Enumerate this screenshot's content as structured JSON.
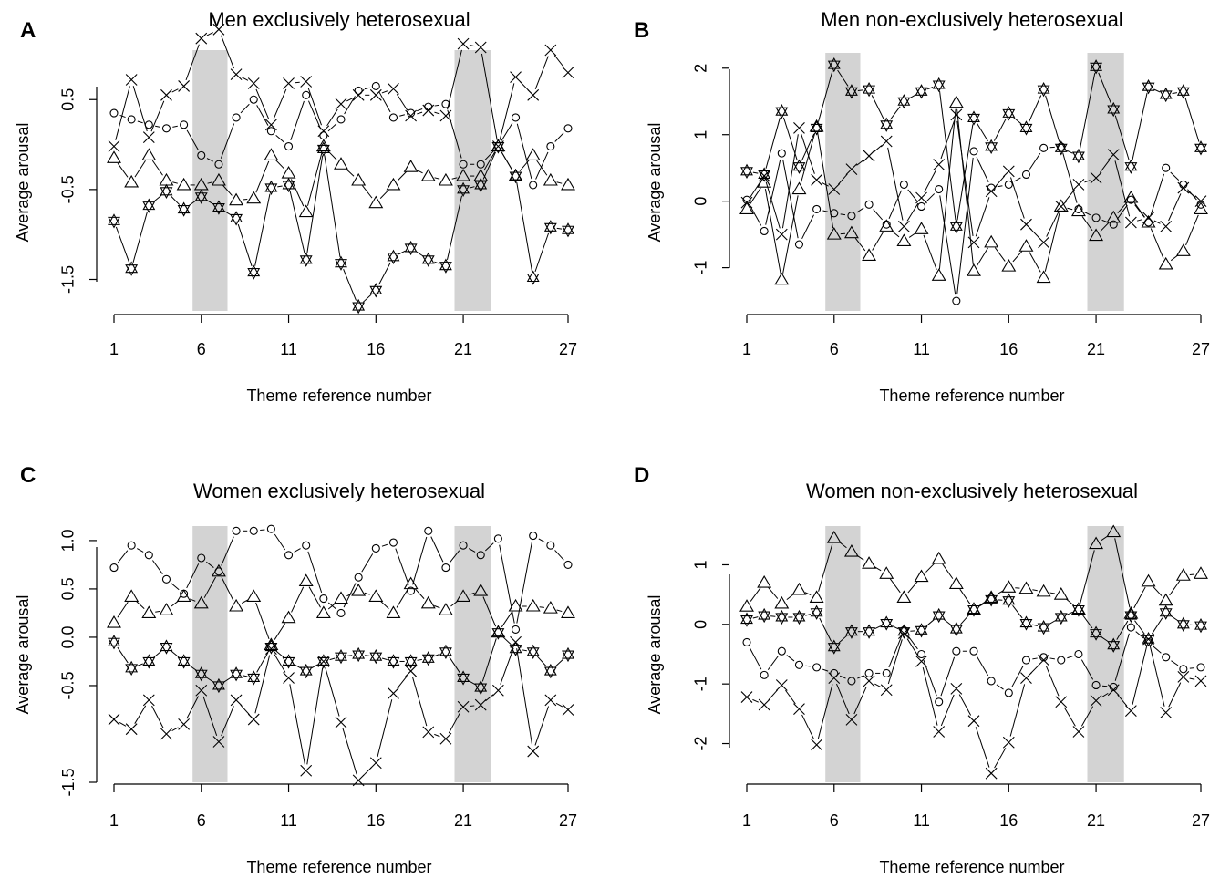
{
  "figure": {
    "colors": {
      "ink": "#000000",
      "shade": "#d3d3d3",
      "background": "#ffffff"
    }
  },
  "chart_data": [
    {
      "type": "line",
      "panel_letter": "A",
      "title": "Men exclusively heterosexual",
      "xlabel": "Theme reference number",
      "ylabel": "Average arousal",
      "xlim": [
        1,
        27
      ],
      "ylim": [
        -1.85,
        1.05
      ],
      "x_ticks": [
        1,
        6,
        11,
        16,
        21,
        27
      ],
      "x_tick_labels": [
        "1",
        "6",
        "11",
        "16",
        "21",
        "27"
      ],
      "y_ticks": [
        0.5,
        -0.5,
        -1.5
      ],
      "y_tick_labels": [
        "0.5",
        "-0.5",
        "-1.5"
      ],
      "shaded_x_ranges": [
        [
          5.5,
          7.5
        ],
        [
          20.5,
          22.6
        ]
      ],
      "grid": false,
      "legend": "none",
      "x": [
        1,
        2,
        3,
        4,
        5,
        6,
        7,
        8,
        9,
        10,
        11,
        12,
        13,
        14,
        15,
        16,
        17,
        18,
        19,
        20,
        21,
        22,
        23,
        24,
        25,
        26,
        27
      ],
      "series": [
        {
          "marker": "circle",
          "values": [
            0.35,
            0.28,
            0.22,
            0.18,
            0.22,
            -0.12,
            -0.22,
            0.3,
            0.5,
            0.15,
            -0.02,
            0.55,
            0.1,
            0.28,
            0.6,
            0.65,
            0.3,
            0.35,
            0.42,
            0.45,
            -0.22,
            -0.22,
            -0.02,
            0.3,
            -0.45,
            -0.02,
            0.18
          ]
        },
        {
          "marker": "cross",
          "values": [
            -0.02,
            0.72,
            0.08,
            0.55,
            0.65,
            1.18,
            1.28,
            0.78,
            0.68,
            0.22,
            0.68,
            0.7,
            0.15,
            0.45,
            0.55,
            0.55,
            0.62,
            0.32,
            0.38,
            0.32,
            1.12,
            1.08,
            -0.02,
            0.75,
            0.55,
            1.05,
            0.8
          ]
        },
        {
          "marker": "triangle",
          "values": [
            -0.15,
            -0.42,
            -0.12,
            -0.4,
            -0.45,
            -0.45,
            -0.4,
            -0.62,
            -0.6,
            -0.12,
            -0.32,
            -0.75,
            -0.02,
            -0.22,
            -0.4,
            -0.65,
            -0.45,
            -0.25,
            -0.35,
            -0.4,
            -0.35,
            -0.35,
            -0.02,
            -0.35,
            -0.12,
            -0.4,
            -0.45
          ]
        },
        {
          "marker": "star",
          "values": [
            -0.85,
            -1.38,
            -0.68,
            -0.52,
            -0.72,
            -0.58,
            -0.7,
            -0.82,
            -1.42,
            -0.48,
            -0.45,
            -1.28,
            -0.05,
            -1.32,
            -1.8,
            -1.62,
            -1.25,
            -1.15,
            -1.28,
            -1.35,
            -0.5,
            -0.45,
            -0.02,
            -0.35,
            -1.48,
            -0.92,
            -0.95
          ]
        }
      ]
    },
    {
      "type": "line",
      "panel_letter": "B",
      "title": "Men non-exclusively heterosexual",
      "xlabel": "Theme reference number",
      "ylabel": "Average arousal",
      "xlim": [
        1,
        27
      ],
      "ylim": [
        -1.65,
        2.23
      ],
      "x_ticks": [
        1,
        6,
        11,
        16,
        21,
        27
      ],
      "x_tick_labels": [
        "1",
        "6",
        "11",
        "16",
        "21",
        "27"
      ],
      "y_ticks": [
        2,
        1,
        0,
        -1
      ],
      "y_tick_labels": [
        "2",
        "1",
        "0",
        "-1"
      ],
      "shaded_x_ranges": [
        [
          5.5,
          7.5
        ],
        [
          20.5,
          22.6
        ]
      ],
      "grid": false,
      "legend": "none",
      "x": [
        1,
        2,
        3,
        4,
        5,
        6,
        7,
        8,
        9,
        10,
        11,
        12,
        13,
        14,
        15,
        16,
        17,
        18,
        19,
        20,
        21,
        22,
        23,
        24,
        25,
        26,
        27
      ],
      "series": [
        {
          "marker": "circle",
          "values": [
            0.02,
            -0.45,
            0.72,
            -0.65,
            -0.12,
            -0.18,
            -0.22,
            -0.05,
            -0.35,
            0.25,
            -0.08,
            0.18,
            -1.5,
            0.75,
            0.2,
            0.25,
            0.4,
            0.8,
            0.82,
            -0.12,
            -0.25,
            -0.35,
            0.02,
            -0.32,
            0.5,
            0.25,
            -0.05
          ]
        },
        {
          "marker": "cross",
          "values": [
            -0.02,
            0.38,
            -0.5,
            1.1,
            0.32,
            0.18,
            0.48,
            0.68,
            0.9,
            -0.38,
            0.05,
            0.55,
            1.3,
            -0.62,
            0.15,
            0.45,
            -0.35,
            -0.62,
            -0.08,
            0.25,
            0.35,
            0.7,
            -0.32,
            -0.25,
            -0.38,
            0.2,
            0.0
          ]
        },
        {
          "marker": "triangle",
          "values": [
            -0.12,
            0.28,
            -1.18,
            0.18,
            1.12,
            -0.5,
            -0.48,
            -0.82,
            -0.38,
            -0.6,
            -0.42,
            -1.12,
            1.48,
            -1.05,
            -0.62,
            -0.98,
            -0.68,
            -1.15,
            -0.08,
            -0.15,
            -0.52,
            -0.25,
            0.05,
            -0.32,
            -0.95,
            -0.75,
            -0.12
          ]
        },
        {
          "marker": "star",
          "values": [
            0.45,
            0.4,
            1.35,
            0.52,
            1.1,
            2.05,
            1.65,
            1.68,
            1.15,
            1.5,
            1.65,
            1.75,
            -0.38,
            1.25,
            0.82,
            1.32,
            1.1,
            1.68,
            0.8,
            0.68,
            2.02,
            1.38,
            0.52,
            1.72,
            1.6,
            1.65,
            0.8
          ]
        }
      ]
    },
    {
      "type": "line",
      "panel_letter": "C",
      "title": "Women exclusively heterosexual",
      "xlabel": "Theme reference number",
      "ylabel": "Average arousal",
      "xlim": [
        1,
        27
      ],
      "ylim": [
        -1.5,
        1.15
      ],
      "x_ticks": [
        1,
        6,
        11,
        16,
        21,
        27
      ],
      "x_tick_labels": [
        "1",
        "6",
        "11",
        "16",
        "21",
        "27"
      ],
      "y_ticks": [
        1.0,
        0.5,
        0.0,
        -0.5,
        -1.5
      ],
      "y_tick_labels": [
        "1.0",
        "0.5",
        "0.0",
        "-0.5",
        "-1.5"
      ],
      "shaded_x_ranges": [
        [
          5.5,
          7.5
        ],
        [
          20.5,
          22.6
        ]
      ],
      "grid": false,
      "legend": "none",
      "x": [
        1,
        2,
        3,
        4,
        5,
        6,
        7,
        8,
        9,
        10,
        11,
        12,
        13,
        14,
        15,
        16,
        17,
        18,
        19,
        20,
        21,
        22,
        23,
        24,
        25,
        26,
        27
      ],
      "series": [
        {
          "marker": "circle",
          "values": [
            0.72,
            0.95,
            0.85,
            0.6,
            0.45,
            0.82,
            0.68,
            1.1,
            1.1,
            1.12,
            0.85,
            0.95,
            0.4,
            0.25,
            0.62,
            0.92,
            0.98,
            0.48,
            1.1,
            0.72,
            0.95,
            0.85,
            1.02,
            0.08,
            1.05,
            0.95,
            0.75
          ]
        },
        {
          "marker": "cross",
          "values": [
            -0.85,
            -0.95,
            -0.65,
            -1.0,
            -0.9,
            -0.55,
            -1.08,
            -0.65,
            -0.85,
            -0.12,
            -0.42,
            -1.38,
            -0.25,
            -0.88,
            -1.48,
            -1.3,
            -0.58,
            -0.35,
            -0.98,
            -1.05,
            -0.72,
            -0.7,
            -0.55,
            -0.05,
            -1.18,
            -0.65,
            -0.75
          ]
        },
        {
          "marker": "triangle",
          "values": [
            0.15,
            0.42,
            0.25,
            0.28,
            0.42,
            0.35,
            0.68,
            0.32,
            0.42,
            -0.08,
            0.2,
            0.58,
            0.25,
            0.4,
            0.48,
            0.42,
            0.25,
            0.55,
            0.35,
            0.28,
            0.42,
            0.48,
            0.05,
            0.32,
            0.32,
            0.3,
            0.25
          ]
        },
        {
          "marker": "star",
          "values": [
            -0.05,
            -0.32,
            -0.25,
            -0.1,
            -0.25,
            -0.38,
            -0.5,
            -0.38,
            -0.42,
            -0.1,
            -0.25,
            -0.35,
            -0.25,
            -0.2,
            -0.18,
            -0.2,
            -0.25,
            -0.25,
            -0.22,
            -0.15,
            -0.42,
            -0.52,
            0.05,
            -0.12,
            -0.15,
            -0.35,
            -0.18
          ]
        }
      ]
    },
    {
      "type": "line",
      "panel_letter": "D",
      "title": "Women non-exclusively heterosexual",
      "xlabel": "Theme reference number",
      "ylabel": "Average arousal",
      "xlim": [
        1,
        27
      ],
      "ylim": [
        -2.65,
        1.65
      ],
      "x_ticks": [
        1,
        6,
        11,
        16,
        21,
        27
      ],
      "x_tick_labels": [
        "1",
        "6",
        "11",
        "16",
        "21",
        "27"
      ],
      "y_ticks": [
        1,
        0,
        -1,
        -2
      ],
      "y_tick_labels": [
        "1",
        "0",
        "-1",
        "-2"
      ],
      "shaded_x_ranges": [
        [
          5.5,
          7.5
        ],
        [
          20.5,
          22.6
        ]
      ],
      "grid": false,
      "legend": "none",
      "x": [
        1,
        2,
        3,
        4,
        5,
        6,
        7,
        8,
        9,
        10,
        11,
        12,
        13,
        14,
        15,
        16,
        17,
        18,
        19,
        20,
        21,
        22,
        23,
        24,
        25,
        26,
        27
      ],
      "series": [
        {
          "marker": "circle",
          "values": [
            -0.3,
            -0.85,
            -0.45,
            -0.68,
            -0.72,
            -0.82,
            -0.95,
            -0.82,
            -0.82,
            -0.1,
            -0.5,
            -1.3,
            -0.45,
            -0.45,
            -0.95,
            -1.15,
            -0.6,
            -0.55,
            -0.6,
            -0.5,
            -1.02,
            -1.05,
            -0.05,
            -0.3,
            -0.55,
            -0.75,
            -0.72
          ]
        },
        {
          "marker": "cross",
          "values": [
            -1.22,
            -1.35,
            -1.02,
            -1.42,
            -2.02,
            -0.9,
            -1.6,
            -0.95,
            -1.1,
            -0.15,
            -0.62,
            -1.8,
            -1.08,
            -1.62,
            -2.5,
            -1.98,
            -0.9,
            -0.6,
            -1.3,
            -1.8,
            -1.28,
            -1.1,
            -1.45,
            -0.25,
            -1.48,
            -0.88,
            -0.95
          ]
        },
        {
          "marker": "triangle",
          "values": [
            0.3,
            0.7,
            0.35,
            0.58,
            0.45,
            1.45,
            1.22,
            1.02,
            0.85,
            0.45,
            0.8,
            1.1,
            0.68,
            0.25,
            0.45,
            0.62,
            0.6,
            0.55,
            0.5,
            0.25,
            1.35,
            1.55,
            0.18,
            0.72,
            0.4,
            0.82,
            0.85
          ]
        },
        {
          "marker": "star",
          "values": [
            0.08,
            0.15,
            0.12,
            0.12,
            0.2,
            -0.38,
            -0.12,
            -0.12,
            0.02,
            -0.12,
            -0.1,
            0.15,
            -0.08,
            0.25,
            0.42,
            0.4,
            0.02,
            -0.05,
            0.12,
            0.25,
            -0.15,
            -0.35,
            0.15,
            -0.25,
            0.2,
            0.0,
            -0.02
          ]
        }
      ]
    }
  ]
}
